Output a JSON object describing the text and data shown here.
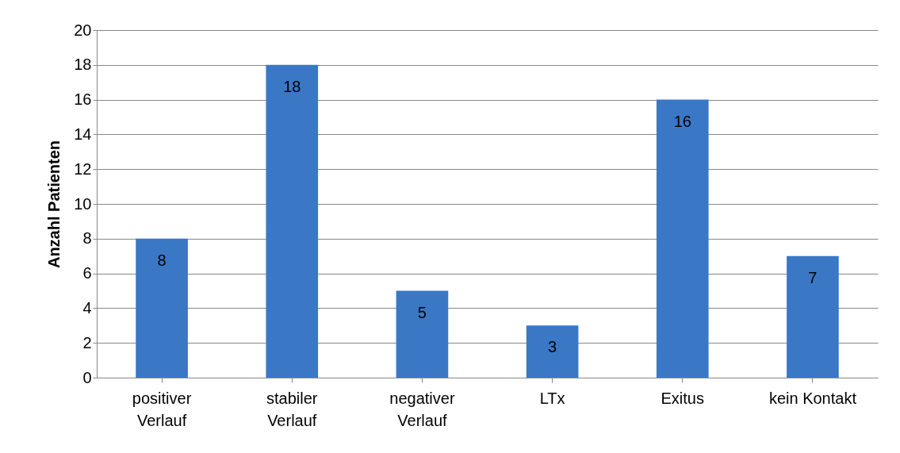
{
  "chart_data": {
    "type": "bar",
    "ylabel": "Anzahl Patienten",
    "categories": [
      "positiver Verlauf",
      "stabiler Verlauf",
      "negativer Verlauf",
      "LTx",
      "Exitus",
      "kein Kontakt"
    ],
    "values": [
      8,
      18,
      5,
      3,
      16,
      7
    ],
    "color": "#3a78c6",
    "ylim": [
      0,
      20
    ],
    "yticks": [
      0,
      2,
      4,
      6,
      8,
      10,
      12,
      14,
      16,
      18,
      20
    ],
    "grid": "y",
    "data_labels": true
  }
}
